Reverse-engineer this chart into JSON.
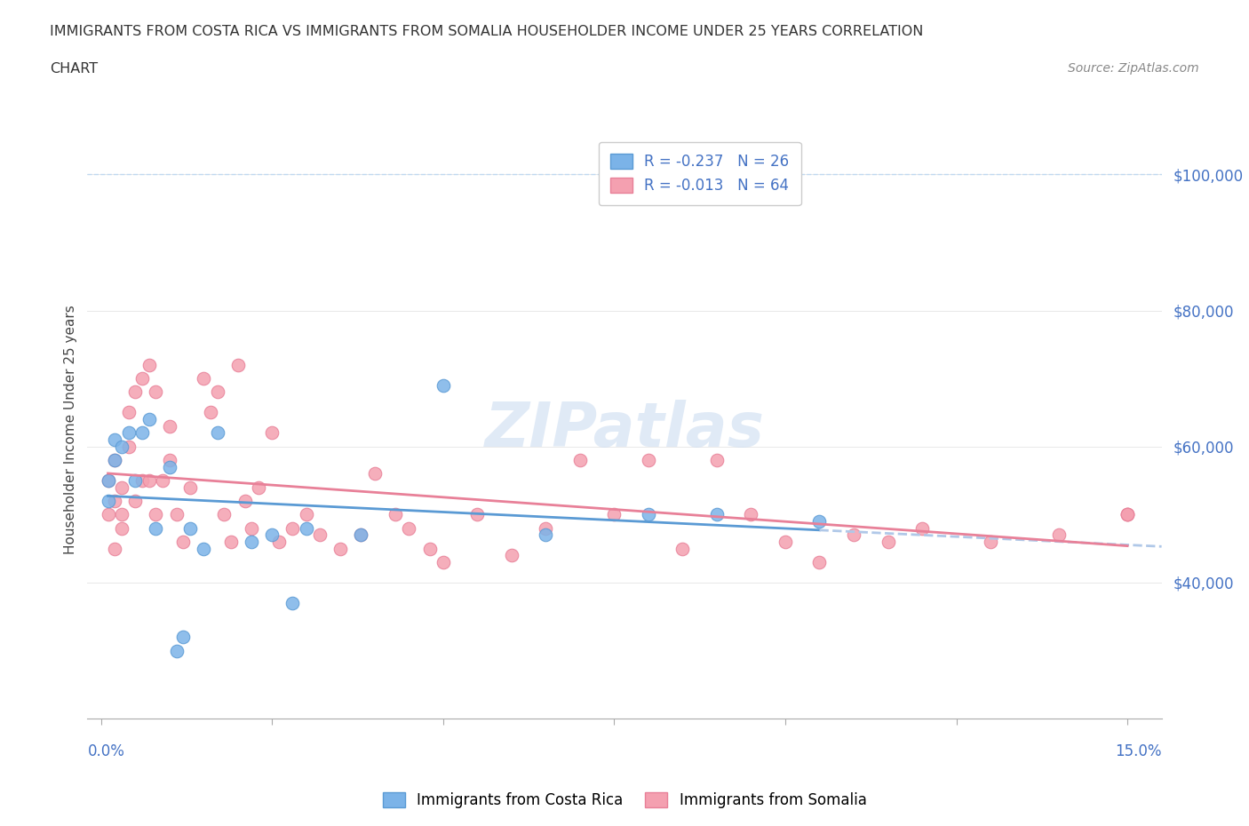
{
  "title_line1": "IMMIGRANTS FROM COSTA RICA VS IMMIGRANTS FROM SOMALIA HOUSEHOLDER INCOME UNDER 25 YEARS CORRELATION",
  "title_line2": "CHART",
  "source": "Source: ZipAtlas.com",
  "ylabel": "Householder Income Under 25 years",
  "watermark": "ZIPatlas",
  "legend_entries": [
    {
      "label": "R = -0.237   N = 26",
      "color": "#a8c8f0"
    },
    {
      "label": "R = -0.013   N = 64",
      "color": "#f4a8b8"
    }
  ],
  "costa_rica_color": "#7bb3e8",
  "somalia_color": "#f4a0b0",
  "costa_rica_edge": "#5a9ad4",
  "somalia_edge": "#e88098",
  "trend_costa_rica_color": "#5a9ad4",
  "trend_somalia_color": "#e88098",
  "trend_extended_color": "#b0c8e8",
  "ylim_min": 20000,
  "ylim_max": 105000,
  "xlim_min": -0.002,
  "xlim_max": 0.155,
  "yticks": [
    40000,
    60000,
    80000,
    100000
  ],
  "ytick_labels": [
    "$40,000",
    "$60,000",
    "$80,000",
    "$100,000"
  ],
  "xticks": [
    0.0,
    0.025,
    0.05,
    0.075,
    0.1,
    0.125,
    0.15
  ],
  "costa_rica_x": [
    0.001,
    0.001,
    0.002,
    0.002,
    0.003,
    0.004,
    0.005,
    0.006,
    0.007,
    0.008,
    0.01,
    0.011,
    0.012,
    0.013,
    0.015,
    0.017,
    0.022,
    0.025,
    0.028,
    0.03,
    0.038,
    0.05,
    0.065,
    0.08,
    0.09,
    0.105
  ],
  "costa_rica_y": [
    52000,
    55000,
    58000,
    61000,
    60000,
    62000,
    55000,
    62000,
    64000,
    48000,
    57000,
    30000,
    32000,
    48000,
    45000,
    62000,
    46000,
    47000,
    37000,
    48000,
    47000,
    69000,
    47000,
    50000,
    50000,
    49000
  ],
  "somalia_x": [
    0.001,
    0.001,
    0.002,
    0.002,
    0.002,
    0.003,
    0.003,
    0.003,
    0.004,
    0.004,
    0.005,
    0.005,
    0.006,
    0.006,
    0.007,
    0.007,
    0.008,
    0.008,
    0.009,
    0.01,
    0.01,
    0.011,
    0.012,
    0.013,
    0.015,
    0.016,
    0.017,
    0.018,
    0.019,
    0.02,
    0.021,
    0.022,
    0.023,
    0.025,
    0.026,
    0.028,
    0.03,
    0.032,
    0.035,
    0.038,
    0.04,
    0.043,
    0.045,
    0.048,
    0.05,
    0.055,
    0.06,
    0.065,
    0.07,
    0.075,
    0.08,
    0.085,
    0.09,
    0.095,
    0.1,
    0.105,
    0.11,
    0.115,
    0.12,
    0.13,
    0.14,
    0.15,
    0.15,
    0.15
  ],
  "somalia_y": [
    55000,
    50000,
    52000,
    58000,
    45000,
    54000,
    48000,
    50000,
    65000,
    60000,
    68000,
    52000,
    70000,
    55000,
    72000,
    55000,
    68000,
    50000,
    55000,
    63000,
    58000,
    50000,
    46000,
    54000,
    70000,
    65000,
    68000,
    50000,
    46000,
    72000,
    52000,
    48000,
    54000,
    62000,
    46000,
    48000,
    50000,
    47000,
    45000,
    47000,
    56000,
    50000,
    48000,
    45000,
    43000,
    50000,
    44000,
    48000,
    58000,
    50000,
    58000,
    45000,
    58000,
    50000,
    46000,
    43000,
    47000,
    46000,
    48000,
    46000,
    47000,
    50000,
    50000,
    50000
  ]
}
